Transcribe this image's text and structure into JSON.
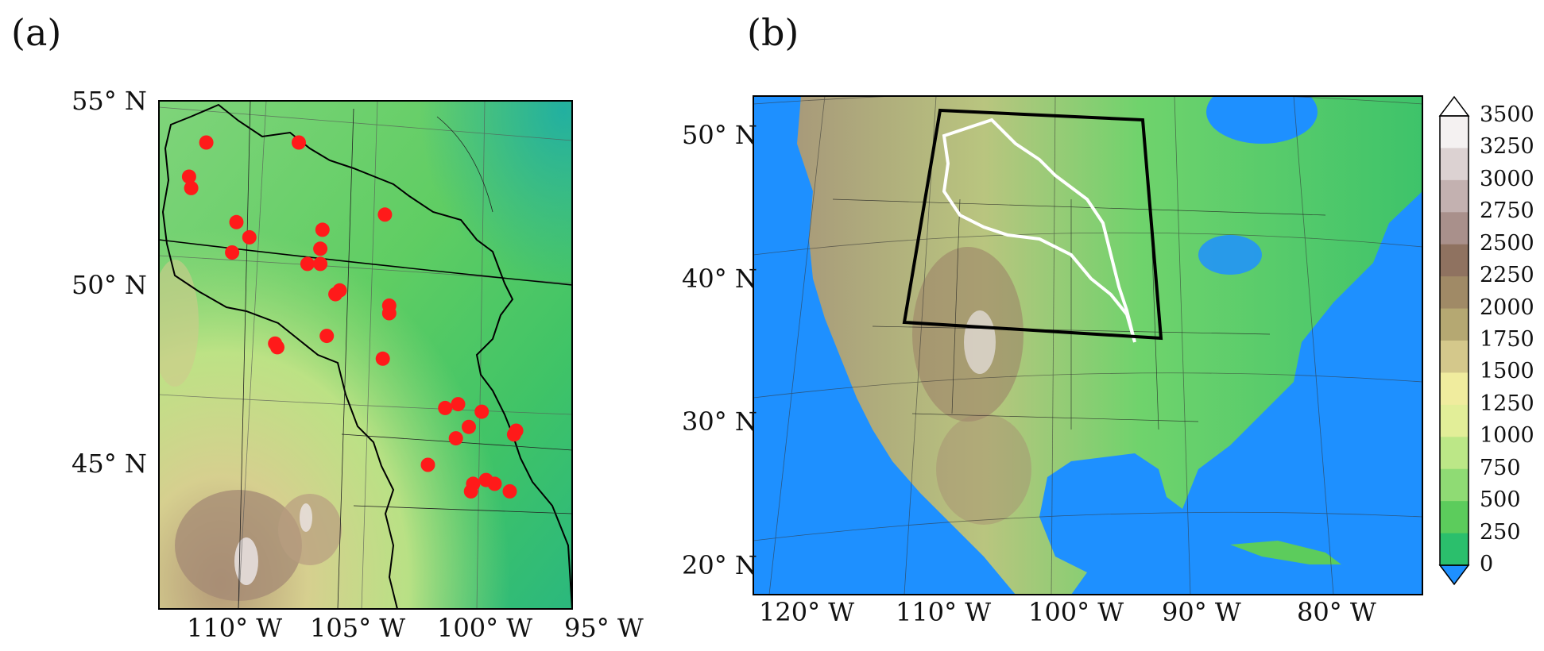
{
  "panel_a": {
    "label": "(a)",
    "lat_labels": [
      "55° N",
      "50° N",
      "45° N"
    ],
    "lon_labels": [
      "110° W",
      "105° W",
      "100° W",
      "95° W"
    ],
    "stations": [
      [
        -110.6,
        54.3
      ],
      [
        -106.3,
        54.3
      ],
      [
        -111.4,
        53.4
      ],
      [
        -111.3,
        53.1
      ],
      [
        -109.2,
        52.2
      ],
      [
        -108.6,
        51.8
      ],
      [
        -109.4,
        51.4
      ],
      [
        -105.2,
        52.0
      ],
      [
        -105.3,
        51.5
      ],
      [
        -105.9,
        51.1
      ],
      [
        -105.3,
        51.1
      ],
      [
        -102.3,
        52.4
      ],
      [
        -104.4,
        50.4
      ],
      [
        -104.6,
        50.3
      ],
      [
        -102.1,
        50.0
      ],
      [
        -102.1,
        49.8
      ],
      [
        -107.4,
        49.0
      ],
      [
        -107.3,
        48.9
      ],
      [
        -105.0,
        49.2
      ],
      [
        -102.4,
        48.6
      ],
      [
        -99.5,
        47.3
      ],
      [
        -98.9,
        47.4
      ],
      [
        -97.8,
        47.2
      ],
      [
        -98.4,
        46.8
      ],
      [
        -99.0,
        46.5
      ],
      [
        -96.3,
        46.6
      ],
      [
        -96.2,
        46.7
      ],
      [
        -100.3,
        45.8
      ],
      [
        -98.2,
        45.3
      ],
      [
        -98.3,
        45.1
      ],
      [
        -97.6,
        45.4
      ],
      [
        -97.2,
        45.3
      ],
      [
        -96.5,
        45.1
      ]
    ]
  },
  "panel_b": {
    "label": "(b)",
    "lat_labels": [
      "50° N",
      "40° N",
      "30° N",
      "20° N"
    ],
    "lon_labels": [
      "120° W",
      "110° W",
      "100° W",
      "90° W",
      "80° W"
    ]
  },
  "colorbar": {
    "ticks": [
      "3500",
      "3250",
      "3000",
      "2750",
      "2500",
      "2250",
      "2000",
      "1750",
      "1500",
      "1250",
      "1000",
      "750",
      "500",
      "250",
      "0"
    ],
    "colors": [
      "#f4f1f1",
      "#dcd2d2",
      "#c3b1b0",
      "#a9908b",
      "#8f7260",
      "#a08a66",
      "#b5a872",
      "#d4c88b",
      "#f0ec9e",
      "#e2ee98",
      "#bce787",
      "#8fdb74",
      "#5ccc5c",
      "#2bbf6c",
      "#17a9a3"
    ],
    "under_color": "#1e90ff",
    "over_color": "#ffffff"
  }
}
